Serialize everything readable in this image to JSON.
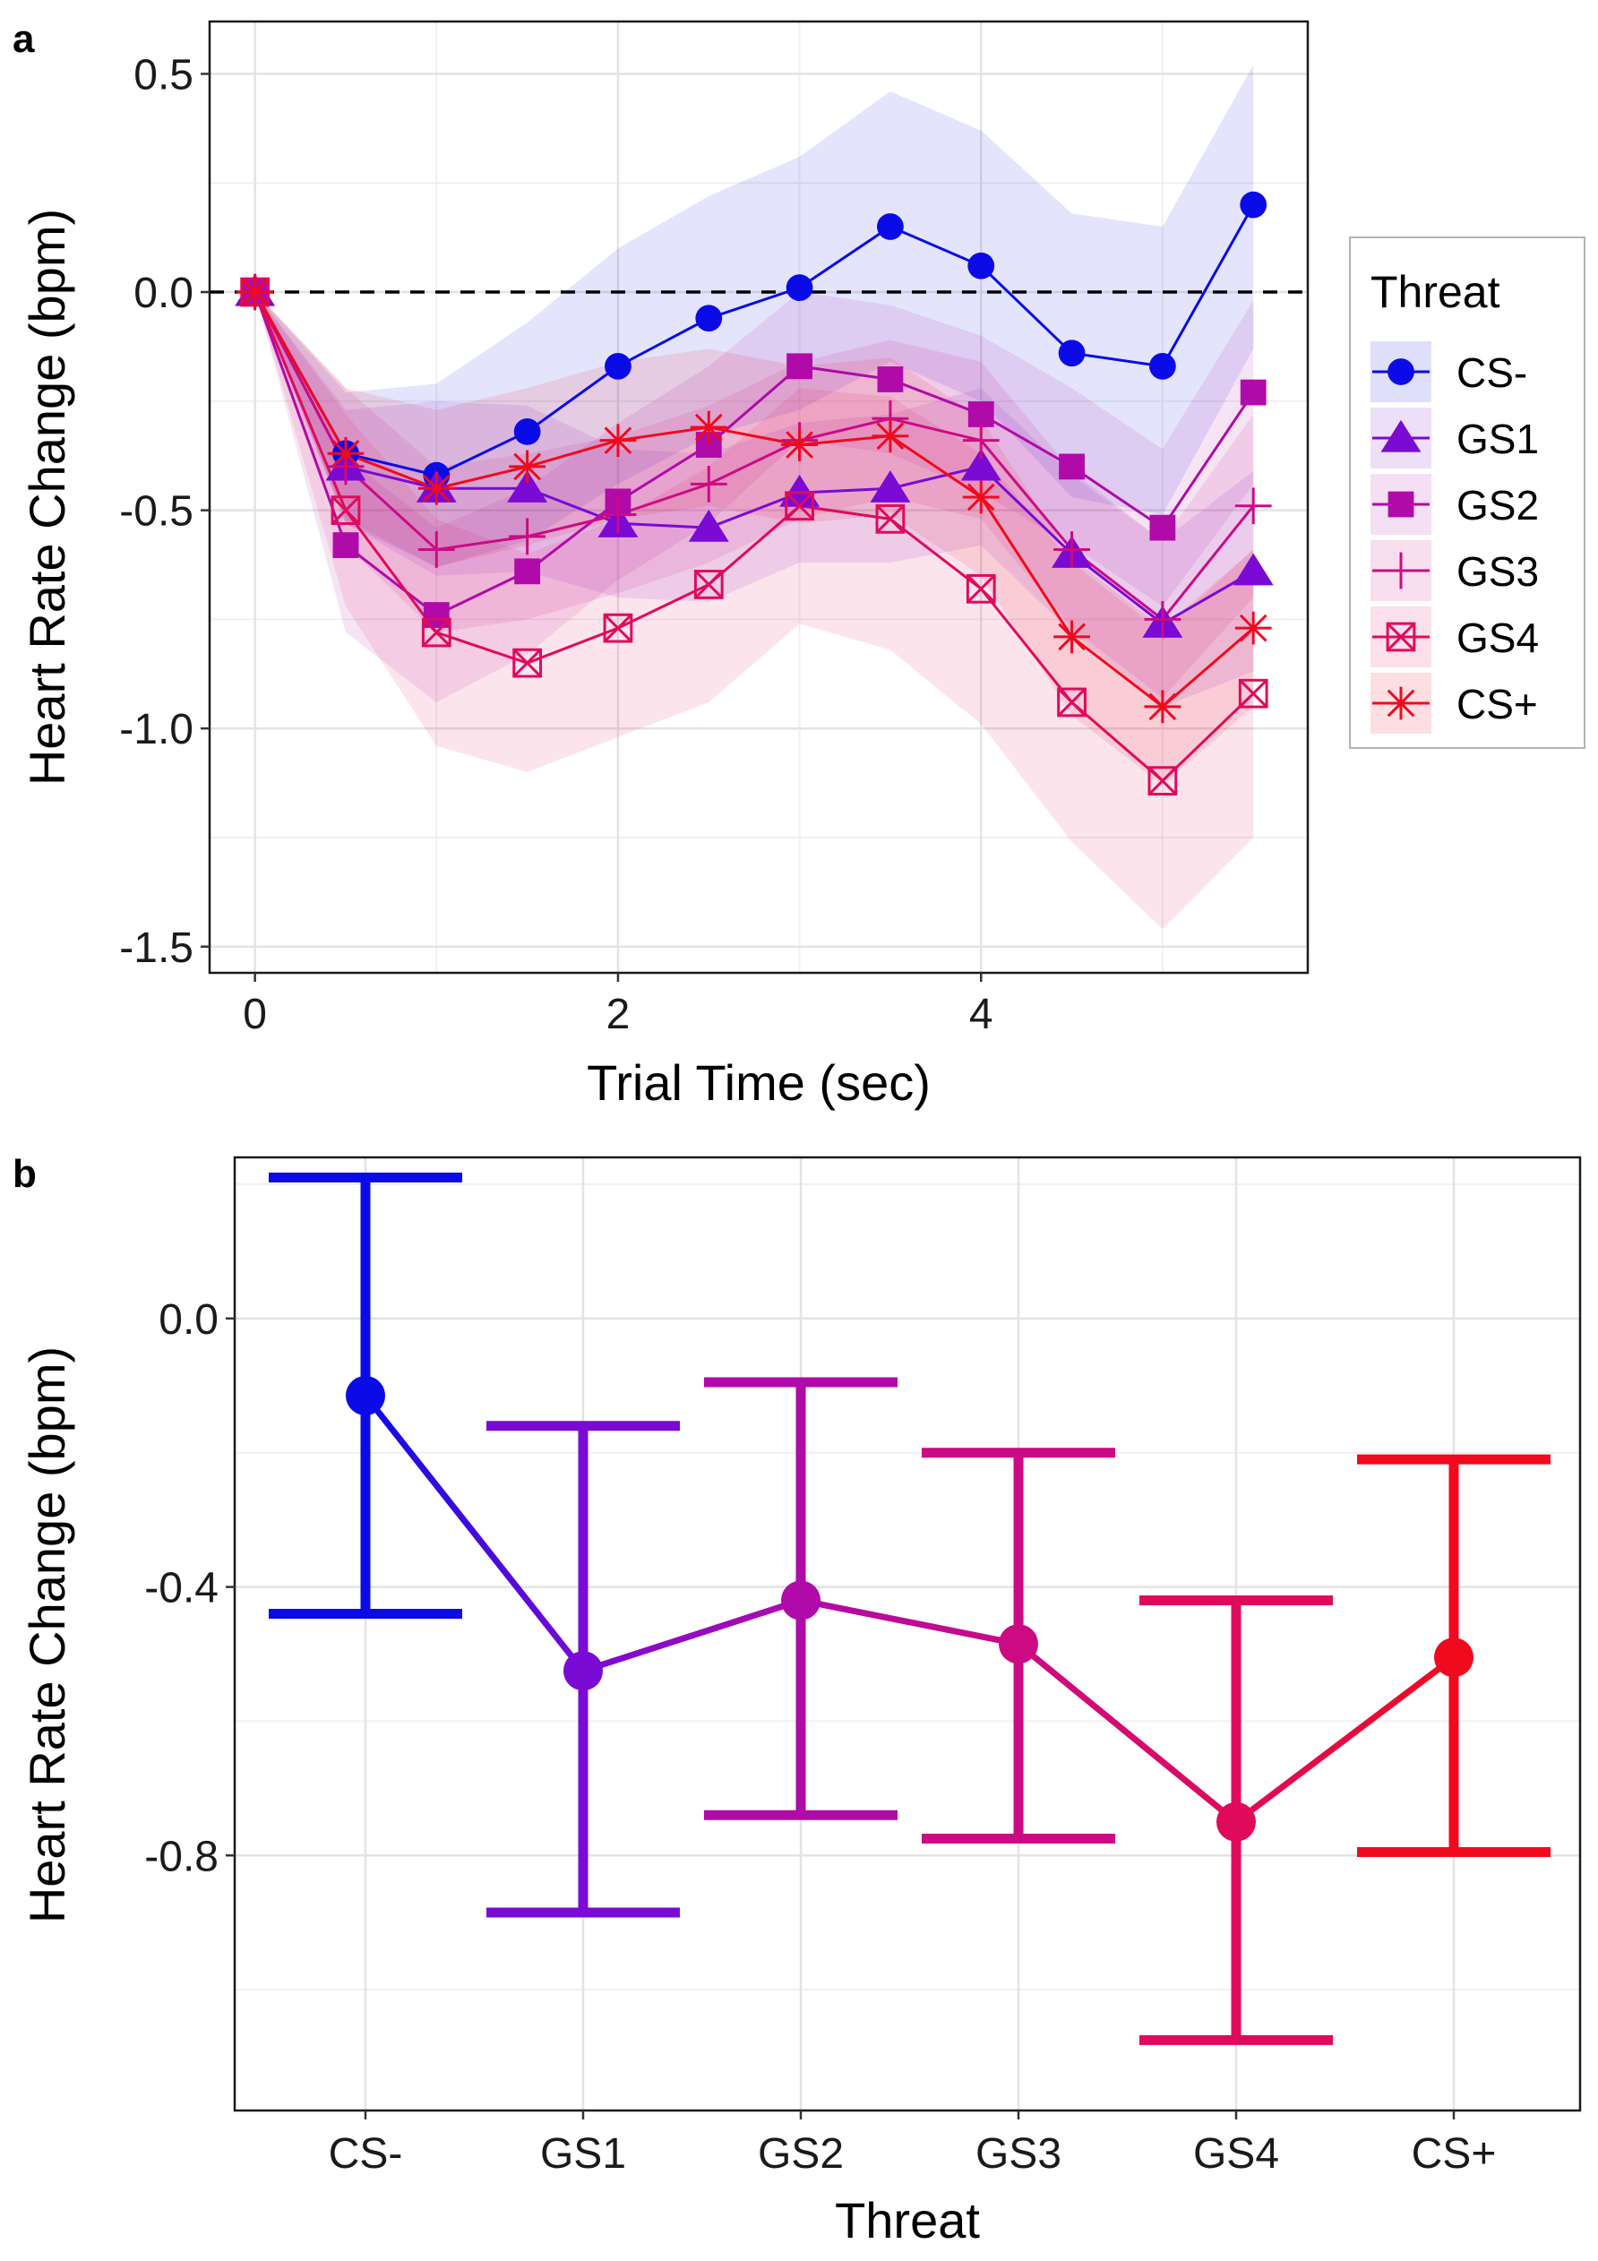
{
  "chart_data": [
    {
      "panel": "a",
      "type": "line",
      "xlabel": "Trial Time (sec)",
      "ylabel": "Heart Rate Change (bpm)",
      "xlim": [
        -0.25,
        5.8
      ],
      "ylim": [
        -1.56,
        0.62
      ],
      "xticks": [
        0,
        2,
        4
      ],
      "xtick_labels": [
        "0",
        "2",
        "4"
      ],
      "yticks": [
        0.5,
        0.0,
        -0.5,
        -1.0,
        -1.5
      ],
      "ytick_labels": [
        "0.5",
        "0.0",
        "-0.5",
        "-1.0",
        "-1.5"
      ],
      "grid": true,
      "reference_line": {
        "y": 0,
        "style": "dashed",
        "color": "#000000"
      },
      "legend_title": "Threat",
      "legend_position": "right",
      "x": [
        0,
        0.5,
        1.0,
        1.5,
        2.0,
        2.5,
        3.0,
        3.5,
        4.0,
        4.5,
        5.0,
        5.5
      ],
      "series": [
        {
          "name": "CS-",
          "color": "#0b0be8",
          "marker": "circle",
          "values": [
            0,
            -0.37,
            -0.42,
            -0.32,
            -0.17,
            -0.06,
            0.01,
            0.15,
            0.06,
            -0.14,
            -0.17,
            0.2
          ],
          "lower": [
            0,
            -0.26,
            -0.21,
            -0.05,
            0.03,
            0.13,
            0.22,
            0.36,
            0.2,
            0.04,
            0.01,
            0.35
          ],
          "upper_note": "ribbon",
          "ribbon": [
            [
              0,
              0
            ],
            [
              -0.23,
              -0.53
            ],
            [
              -0.21,
              -0.63
            ],
            [
              -0.07,
              -0.57
            ],
            [
              0.1,
              -0.44
            ],
            [
              0.22,
              -0.33
            ],
            [
              0.31,
              -0.27
            ],
            [
              0.46,
              -0.16
            ],
            [
              0.37,
              -0.25
            ],
            [
              0.18,
              -0.47
            ],
            [
              0.15,
              -0.51
            ],
            [
              0.52,
              -0.13
            ]
          ]
        },
        {
          "name": "GS1",
          "color": "#7a0ad4",
          "marker": "triangle",
          "values": [
            0,
            -0.4,
            -0.45,
            -0.45,
            -0.53,
            -0.54,
            -0.46,
            -0.45,
            -0.4,
            -0.6,
            -0.76,
            -0.64
          ],
          "ribbon": [
            [
              0,
              0
            ],
            [
              -0.27,
              -0.53
            ],
            [
              -0.25,
              -0.65
            ],
            [
              -0.26,
              -0.64
            ],
            [
              -0.36,
              -0.7
            ],
            [
              -0.37,
              -0.71
            ],
            [
              -0.3,
              -0.62
            ],
            [
              -0.28,
              -0.62
            ],
            [
              -0.22,
              -0.58
            ],
            [
              -0.42,
              -0.78
            ],
            [
              -0.57,
              -0.95
            ],
            [
              -0.41,
              -0.87
            ]
          ]
        },
        {
          "name": "GS2",
          "color": "#b00aa8",
          "marker": "square",
          "values": [
            0,
            -0.58,
            -0.74,
            -0.64,
            -0.48,
            -0.35,
            -0.17,
            -0.2,
            -0.28,
            -0.4,
            -0.54,
            -0.23
          ],
          "ribbon": [
            [
              0,
              0
            ],
            [
              -0.38,
              -0.78
            ],
            [
              -0.54,
              -0.94
            ],
            [
              -0.45,
              -0.83
            ],
            [
              -0.3,
              -0.66
            ],
            [
              -0.17,
              -0.53
            ],
            [
              0.0,
              -0.34
            ],
            [
              -0.03,
              -0.37
            ],
            [
              -0.1,
              -0.46
            ],
            [
              -0.22,
              -0.58
            ],
            [
              -0.36,
              -0.72
            ],
            [
              -0.02,
              -0.44
            ]
          ]
        },
        {
          "name": "GS3",
          "color": "#cc0a84",
          "marker": "plus",
          "values": [
            0,
            -0.4,
            -0.59,
            -0.56,
            -0.51,
            -0.44,
            -0.34,
            -0.29,
            -0.34,
            -0.59,
            -0.75,
            -0.49
          ],
          "ribbon": [
            [
              0,
              0
            ],
            [
              -0.22,
              -0.58
            ],
            [
              -0.4,
              -0.78
            ],
            [
              -0.37,
              -0.75
            ],
            [
              -0.33,
              -0.69
            ],
            [
              -0.26,
              -0.62
            ],
            [
              -0.16,
              -0.52
            ],
            [
              -0.11,
              -0.47
            ],
            [
              -0.16,
              -0.52
            ],
            [
              -0.41,
              -0.77
            ],
            [
              -0.57,
              -0.93
            ],
            [
              -0.28,
              -0.7
            ]
          ]
        },
        {
          "name": "GS4",
          "color": "#e00a5c",
          "marker": "square-x",
          "values": [
            0,
            -0.5,
            -0.78,
            -0.85,
            -0.77,
            -0.67,
            -0.49,
            -0.52,
            -0.68,
            -0.94,
            -1.12,
            -0.92
          ],
          "ribbon": [
            [
              0,
              0
            ],
            [
              -0.28,
              -0.72
            ],
            [
              -0.52,
              -1.04
            ],
            [
              -0.6,
              -1.1
            ],
            [
              -0.52,
              -1.02
            ],
            [
              -0.4,
              -0.94
            ],
            [
              -0.22,
              -0.76
            ],
            [
              -0.24,
              -0.82
            ],
            [
              -0.37,
              -0.99
            ],
            [
              -0.62,
              -1.26
            ],
            [
              -0.78,
              -1.46
            ],
            [
              -0.59,
              -1.25
            ]
          ]
        },
        {
          "name": "CS+",
          "color": "#f00a1e",
          "marker": "asterisk",
          "values": [
            0,
            -0.37,
            -0.45,
            -0.4,
            -0.34,
            -0.31,
            -0.35,
            -0.33,
            -0.47,
            -0.79,
            -0.95,
            -0.77
          ],
          "ribbon": [
            [
              0,
              0
            ],
            [
              -0.22,
              -0.52
            ],
            [
              -0.27,
              -0.63
            ],
            [
              -0.22,
              -0.58
            ],
            [
              -0.16,
              -0.52
            ],
            [
              -0.13,
              -0.49
            ],
            [
              -0.17,
              -0.53
            ],
            [
              -0.15,
              -0.51
            ],
            [
              -0.29,
              -0.65
            ],
            [
              -0.61,
              -0.97
            ],
            [
              -0.77,
              -1.13
            ],
            [
              -0.59,
              -0.95
            ]
          ]
        }
      ]
    },
    {
      "panel": "b",
      "type": "line",
      "xlabel": "Threat",
      "ylabel": "Heart Rate Change (bpm)",
      "categories": [
        "CS-",
        "GS1",
        "GS2",
        "GS3",
        "GS4",
        "CS+"
      ],
      "ylim": [
        -1.18,
        0.24
      ],
      "yticks": [
        0.0,
        -0.4,
        -0.8
      ],
      "ytick_labels": [
        "0.0",
        "-0.4",
        "-0.8"
      ],
      "grid": true,
      "colors": [
        "#0b0be8",
        "#7a0ad4",
        "#b00aa8",
        "#cc0a84",
        "#e00a5c",
        "#f00a1e"
      ],
      "values": [
        -0.115,
        -0.525,
        -0.42,
        -0.485,
        -0.75,
        -0.505
      ],
      "error_high": [
        0.21,
        -0.16,
        -0.095,
        -0.2,
        -0.42,
        -0.21
      ],
      "error_low": [
        -0.44,
        -0.885,
        -0.74,
        -0.775,
        -1.075,
        -0.795
      ]
    }
  ],
  "panel_labels": [
    "a",
    "b"
  ]
}
